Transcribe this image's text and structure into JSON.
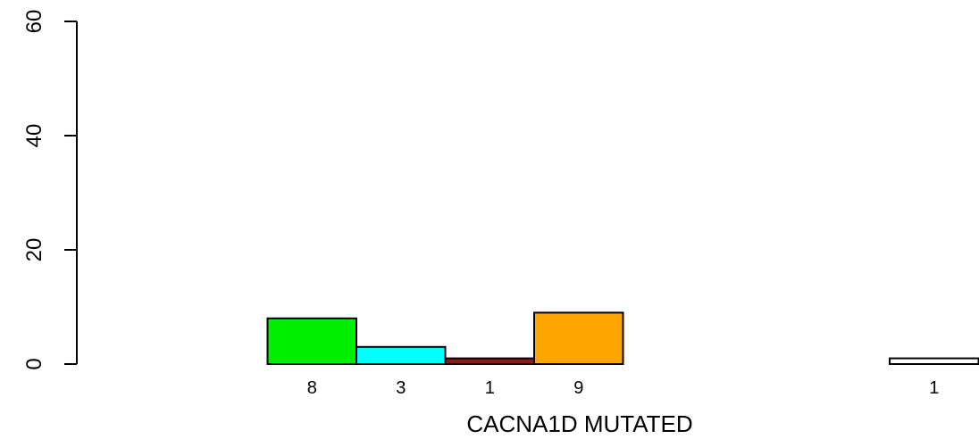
{
  "chart_data": {
    "type": "bar",
    "xlabel": "CACNA1D MUTATED",
    "ylabel": "",
    "ylim": [
      0,
      60
    ],
    "yticks": [
      0,
      20,
      40,
      60
    ],
    "values": [
      0,
      8,
      3,
      1,
      9,
      0,
      0,
      0,
      1
    ],
    "bar_labels": [
      "",
      "8",
      "3",
      "1",
      "9",
      "",
      "",
      "",
      "1"
    ],
    "colors": [
      "#ffffff",
      "#00ee00",
      "#00ffff",
      "#8b1a1a",
      "#ffa500",
      "#ffffff",
      "#ffffff",
      "#ffffff",
      "#ffffff"
    ],
    "grid": false
  }
}
